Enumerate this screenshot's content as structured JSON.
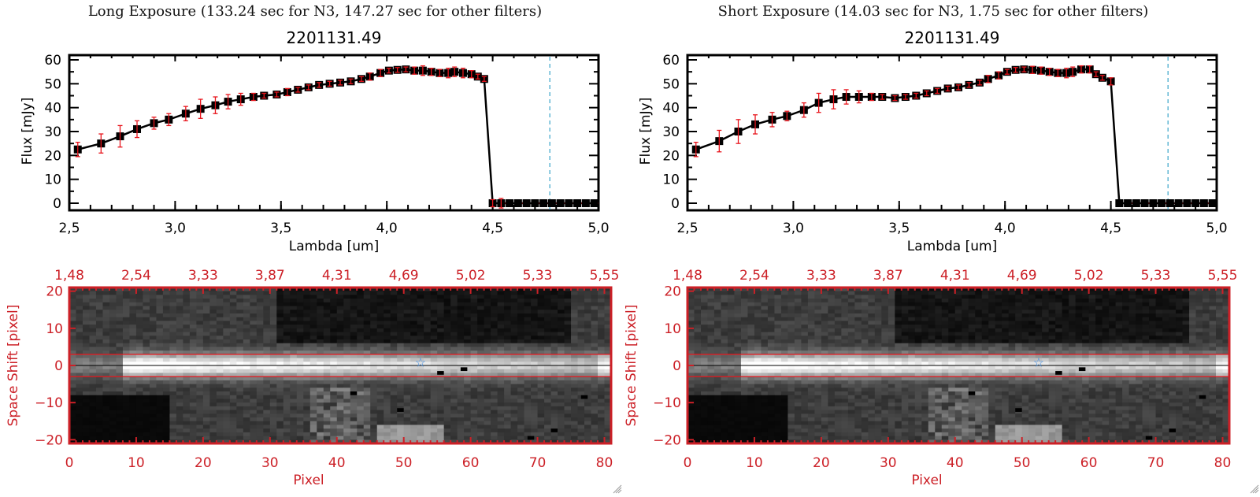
{
  "colors": {
    "axis": "#000000",
    "errorbar": "#e8141b",
    "image_axis": "#cc2027",
    "star": "#3b8ee8",
    "vline": "#3aa3c9",
    "zero_line": "#e8141b"
  },
  "chart_data": [
    {
      "panel": "left",
      "type": "line",
      "exposure_title": "Long Exposure (133.24 sec for N3, 147.27 sec for other filters)",
      "title": "2201131.49",
      "xlabel": "Lambda [um]",
      "ylabel": "Flux [mJy]",
      "xlim": [
        2.5,
        5.0
      ],
      "ylim": [
        0,
        60
      ],
      "xticks": [
        "2.5",
        "3.0",
        "3.5",
        "4.0",
        "4.5",
        "5.0"
      ],
      "yticks": [
        "0",
        "10",
        "20",
        "30",
        "40",
        "50",
        "60"
      ],
      "vline_x": 4.77,
      "series": [
        {
          "name": "flux",
          "x": [
            2.54,
            2.65,
            2.74,
            2.82,
            2.9,
            2.97,
            3.05,
            3.12,
            3.19,
            3.25,
            3.31,
            3.37,
            3.42,
            3.48,
            3.53,
            3.58,
            3.63,
            3.68,
            3.73,
            3.78,
            3.83,
            3.88,
            3.92,
            3.97,
            4.01,
            4.05,
            4.09,
            4.13,
            4.17,
            4.21,
            4.25,
            4.29,
            4.32,
            4.36,
            4.4,
            4.43,
            4.46,
            4.5,
            4.54,
            4.58,
            4.62,
            4.66,
            4.7,
            4.74,
            4.78,
            4.82,
            4.86,
            4.9,
            4.94,
            4.98
          ],
          "y": [
            22.5,
            25,
            28,
            31,
            33.5,
            35,
            37.5,
            39.5,
            41,
            42.5,
            43.5,
            44.5,
            45,
            45.5,
            46.5,
            47.5,
            48.5,
            49.5,
            50,
            50.5,
            51,
            52,
            53,
            54.5,
            55.5,
            55.8,
            56,
            55.5,
            55.5,
            55,
            54.5,
            54.5,
            55,
            54.5,
            54,
            53,
            52,
            0,
            0,
            0,
            0,
            0,
            0,
            0,
            0,
            0,
            0,
            0,
            0,
            0
          ],
          "err": [
            3,
            4,
            4.5,
            3.5,
            2.5,
            2.5,
            3,
            4,
            3.5,
            3,
            2.5,
            1.5,
            1,
            1,
            1.5,
            1,
            1,
            1,
            1,
            1,
            1,
            1,
            1.5,
            1.5,
            1,
            1,
            1,
            1.5,
            2,
            1.5,
            1.5,
            2,
            2,
            2,
            1.5,
            1,
            1,
            1.5,
            2,
            0,
            0,
            0,
            0,
            0,
            0,
            0,
            0,
            0,
            0,
            0
          ]
        }
      ]
    },
    {
      "panel": "right",
      "type": "line",
      "exposure_title": "Short Exposure (14.03 sec for N3, 1.75 sec for other filters)",
      "title": "2201131.49",
      "xlabel": "Lambda [um]",
      "ylabel": "Flux [mJy]",
      "xlim": [
        2.5,
        5.0
      ],
      "ylim": [
        0,
        60
      ],
      "xticks": [
        "2.5",
        "3.0",
        "3.5",
        "4.0",
        "4.5",
        "5.0"
      ],
      "yticks": [
        "0",
        "10",
        "20",
        "30",
        "40",
        "50",
        "60"
      ],
      "vline_x": 4.77,
      "series": [
        {
          "name": "flux",
          "x": [
            2.54,
            2.65,
            2.74,
            2.82,
            2.9,
            2.97,
            3.05,
            3.12,
            3.19,
            3.25,
            3.31,
            3.37,
            3.42,
            3.48,
            3.53,
            3.58,
            3.63,
            3.68,
            3.73,
            3.78,
            3.83,
            3.88,
            3.92,
            3.97,
            4.01,
            4.05,
            4.09,
            4.13,
            4.17,
            4.21,
            4.25,
            4.29,
            4.32,
            4.36,
            4.4,
            4.43,
            4.46,
            4.5,
            4.54,
            4.58,
            4.62,
            4.66,
            4.7,
            4.74,
            4.78,
            4.82,
            4.86,
            4.9,
            4.94,
            4.98
          ],
          "y": [
            22.5,
            26,
            30,
            33,
            35,
            36.5,
            39,
            42,
            43.5,
            44.5,
            44.5,
            44.5,
            44.5,
            44,
            44.5,
            45,
            46,
            47,
            48,
            48.5,
            49.5,
            50.5,
            52,
            53.5,
            55,
            55.8,
            56,
            55.8,
            55.5,
            55,
            54.5,
            54.5,
            55,
            56,
            56,
            54,
            52.5,
            51,
            0,
            0,
            0,
            0,
            0,
            0,
            0,
            0,
            0,
            0,
            0,
            0
          ],
          "err": [
            3,
            4.5,
            5,
            4,
            3,
            2,
            3,
            4,
            4,
            3,
            2.5,
            1.5,
            1,
            1,
            1,
            1,
            1,
            1,
            1,
            1,
            1,
            1,
            1.5,
            1.5,
            1,
            1,
            1,
            1.5,
            1.5,
            1.5,
            1.5,
            2,
            2,
            1.5,
            1.5,
            1,
            1,
            1.5,
            0,
            0,
            0,
            0,
            0,
            0,
            0,
            0,
            0,
            0,
            0,
            0
          ]
        }
      ]
    },
    {
      "panel": "left-image",
      "type": "heatmap",
      "xlabel": "Pixel",
      "ylabel": "Space Shift [pixel]",
      "xlim": [
        0,
        81
      ],
      "ylim": [
        -21,
        21
      ],
      "xticks": [
        "0",
        "10",
        "20",
        "30",
        "40",
        "50",
        "60",
        "70",
        "80"
      ],
      "yticks": [
        "-20",
        "-10",
        "0",
        "10",
        "20"
      ],
      "top_ticks": [
        "1.48",
        "2.54",
        "3.33",
        "3.87",
        "4.31",
        "4.69",
        "5.02",
        "5.33",
        "5.55"
      ],
      "aperture": [
        -3,
        3
      ],
      "center": 0,
      "star": {
        "x": 52.5,
        "y": 1
      }
    },
    {
      "panel": "right-image",
      "type": "heatmap",
      "xlabel": "Pixel",
      "ylabel": "Space Shift [pixel]",
      "xlim": [
        0,
        81
      ],
      "ylim": [
        -21,
        21
      ],
      "xticks": [
        "0",
        "10",
        "20",
        "30",
        "40",
        "50",
        "60",
        "70",
        "80"
      ],
      "yticks": [
        "-20",
        "-10",
        "0",
        "10",
        "20"
      ],
      "top_ticks": [
        "1.48",
        "2.54",
        "3.33",
        "3.87",
        "4.31",
        "4.69",
        "5.02",
        "5.33",
        "5.55"
      ],
      "aperture": [
        -3,
        3
      ],
      "center": 0,
      "star": {
        "x": 52.5,
        "y": 1
      }
    }
  ],
  "panels": {
    "left": {
      "exposure_title": "Long Exposure (133.24 sec for N3, 147.27 sec for other filters)",
      "title": "2201131.49",
      "xlabel": "Lambda [um]",
      "ylabel": "Flux [mJy]",
      "img_xlabel": "Pixel",
      "img_ylabel": "Space Shift [pixel]"
    },
    "right": {
      "exposure_title": "Short Exposure (14.03 sec for N3, 1.75 sec for other filters)",
      "title": "2201131.49",
      "xlabel": "Lambda [um]",
      "ylabel": "Flux [mJy]",
      "img_xlabel": "Pixel",
      "img_ylabel": "Space Shift [pixel]"
    }
  }
}
